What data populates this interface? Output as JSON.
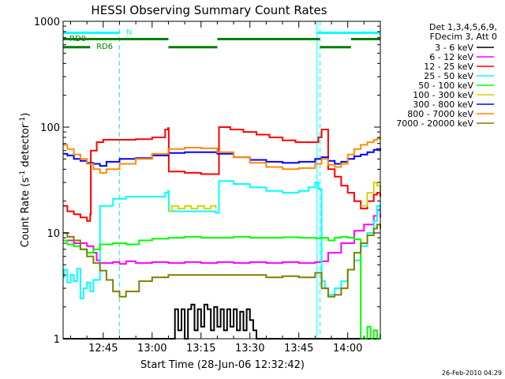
{
  "chart_data": {
    "type": "line",
    "title": "HESSI Observing Summary Count Rates",
    "xlabel": "Start Time (28-Jun-06 12:32:42)",
    "ylabel_main": "Count Rate (s",
    "ylabel_sup1": "-1",
    "ylabel_mid": " detector",
    "ylabel_sup2": "-1",
    "ylabel_end": ")",
    "y_scale": "log",
    "ylim": [
      1,
      1000
    ],
    "xlim": [
      "12:32:42",
      "14:10"
    ],
    "grid": false,
    "legend_position": "top-right",
    "legend_header": [
      "Det 1,3,4,5,6,9,",
      "FDecim 3, Att 0"
    ],
    "x_ticks": [
      {
        "label": "12:45",
        "t": 45
      },
      {
        "label": "13:00",
        "t": 60
      },
      {
        "label": "13:15",
        "t": 75
      },
      {
        "label": "13:30",
        "t": 90
      },
      {
        "label": "13:45",
        "t": 105
      },
      {
        "label": "14:00",
        "t": 120
      }
    ],
    "y_ticks": [
      {
        "label": "1",
        "v": 1
      },
      {
        "label": "10",
        "v": 10
      },
      {
        "label": "100",
        "v": 100
      },
      {
        "label": "1000",
        "v": 1000
      }
    ],
    "flags": [
      {
        "label": "N",
        "color": "#00ffff",
        "v": 780,
        "segments": [
          [
            32.7,
            50.0
          ],
          [
            110.6,
            130.0
          ]
        ]
      },
      {
        "label": "RD0",
        "color": "#007f00",
        "v": 680,
        "segments": [
          [
            32.7,
            43.0
          ],
          [
            41.0,
            65.0
          ],
          [
            80.0,
            111.5
          ],
          [
            121.0,
            130.0
          ]
        ]
      },
      {
        "label": "RD6",
        "color": "#007f00",
        "v": 570,
        "segments": [
          [
            32.7,
            41.0
          ],
          [
            65.0,
            80.0
          ],
          [
            111.5,
            121.0
          ]
        ]
      }
    ],
    "vertical_lines": [
      {
        "t": 50.0,
        "style": "dashed",
        "color": "#00ffff"
      },
      {
        "t": 110.6,
        "style": "solid",
        "color": "#00ffff"
      },
      {
        "t": 111.5,
        "style": "dashed",
        "color": "#00ffff"
      },
      {
        "t": 130.0,
        "style": "dashed",
        "color": "#00ffff"
      }
    ],
    "series": [
      {
        "name": "3 - 6 keV",
        "color": "#000000",
        "x": [
          32.7,
          66,
          67,
          68,
          69,
          70,
          71,
          72,
          73,
          74,
          75,
          76,
          77,
          78,
          79,
          80,
          81,
          82,
          83,
          84,
          85,
          86,
          87,
          88,
          89,
          90,
          91,
          92,
          130
        ],
        "y": [
          1,
          1,
          1.9,
          1.2,
          1.9,
          1,
          1.9,
          2.1,
          1.2,
          1.9,
          1.3,
          2.1,
          1.9,
          1.2,
          2.0,
          1.3,
          1.9,
          1.2,
          1.9,
          1.3,
          1.9,
          1.2,
          1.8,
          1.2,
          1.9,
          1.5,
          1.2,
          1,
          1
        ]
      },
      {
        "name": "6 - 12 keV",
        "color": "#ff00ff",
        "x": [
          32.7,
          36,
          40,
          42,
          43,
          44,
          48,
          50,
          52,
          55,
          60,
          65,
          70,
          75,
          80,
          85,
          90,
          95,
          100,
          105,
          110,
          112,
          114,
          118,
          122,
          125,
          128,
          129,
          130
        ],
        "y": [
          8.5,
          8.0,
          7.5,
          6.5,
          5.5,
          5.2,
          5.3,
          5.1,
          5.4,
          5.2,
          5.3,
          5.2,
          5.3,
          5.2,
          5.3,
          5.2,
          5.3,
          5.2,
          5.3,
          5.2,
          5.3,
          5.4,
          6.5,
          8.0,
          10.5,
          12.0,
          14.5,
          16.5,
          14.0
        ]
      },
      {
        "name": "12 - 25 keV",
        "color": "#ff0000",
        "x": [
          32.7,
          34,
          36,
          38,
          40,
          41,
          41.2,
          43,
          45,
          50,
          55,
          60,
          64,
          64.9,
          65.1,
          70,
          75,
          79.5,
          80.5,
          84,
          88,
          92,
          96,
          100,
          104,
          108,
          111,
          112,
          114,
          116,
          118,
          120,
          122,
          124,
          126,
          128,
          129,
          130
        ],
        "y": [
          18,
          16,
          15,
          14,
          13,
          15,
          60,
          72,
          76,
          76,
          77,
          80,
          95,
          98,
          38,
          37,
          36,
          36,
          100,
          95,
          90,
          85,
          80,
          75,
          72,
          72,
          80,
          95,
          40,
          34,
          28,
          24,
          20,
          17,
          20,
          23,
          24,
          22
        ]
      },
      {
        "name": "25 - 50 keV",
        "color": "#00ffff",
        "x": [
          32.7,
          33,
          34,
          35,
          36,
          37,
          38,
          39,
          40,
          41,
          42,
          44,
          48,
          52,
          56,
          60,
          64,
          64.9,
          65.1,
          70,
          75,
          79.5,
          80.5,
          85,
          90,
          95,
          100,
          105,
          108,
          110,
          111,
          112,
          113,
          114,
          116,
          118,
          120,
          122,
          124,
          126,
          128,
          129,
          130
        ],
        "y": [
          3.8,
          4.5,
          3.4,
          4.0,
          3.5,
          4.6,
          2.4,
          3.0,
          3.4,
          2.8,
          3.6,
          18,
          21,
          22,
          22,
          22,
          24,
          25,
          16,
          16,
          16,
          15.5,
          31,
          29,
          27,
          25,
          24,
          25,
          27,
          30,
          26,
          3.5,
          3.0,
          2.6,
          3.0,
          3.5,
          4.5,
          5.5,
          7.5,
          10,
          13,
          18,
          15
        ]
      },
      {
        "name": "50 - 100 keV",
        "color": "#00ff00",
        "x": [
          32.7,
          34,
          36,
          38,
          40,
          42,
          44,
          48,
          52,
          56,
          60,
          65,
          70,
          75,
          80,
          85,
          90,
          95,
          100,
          105,
          110,
          112,
          114,
          116,
          118,
          120,
          122,
          124,
          125,
          126,
          127,
          128,
          129,
          130
        ],
        "y": [
          8.5,
          7.8,
          7.5,
          7.0,
          6.5,
          7.0,
          7.8,
          8.0,
          7.8,
          8.5,
          8.8,
          9.0,
          9.2,
          9.0,
          9.0,
          9.2,
          9.0,
          9.0,
          9.1,
          9.0,
          8.9,
          9.0,
          8.5,
          9.0,
          9.2,
          9.0,
          8.7,
          1.0,
          1.0,
          1.3,
          1.0,
          1.2,
          1.0,
          1.1
        ]
      },
      {
        "name": "100 - 300 keV",
        "color": "#d4d400",
        "x": [
          32.7,
          64.9,
          65.1,
          66,
          68,
          70,
          72,
          74,
          76,
          78,
          79.5,
          80.5,
          122,
          124,
          126,
          128,
          129,
          130
        ],
        "y": [
          null,
          null,
          16,
          18,
          17,
          18,
          17,
          18,
          17,
          18,
          17,
          null,
          null,
          18,
          24,
          30,
          28,
          24
        ]
      },
      {
        "name": "300 - 800 keV",
        "color": "#0000ff",
        "x": [
          32.7,
          34,
          36,
          38,
          40,
          42,
          44,
          46,
          50,
          55,
          60,
          65,
          70,
          75,
          80,
          85,
          90,
          95,
          100,
          105,
          110,
          112,
          114,
          116,
          118,
          120,
          122,
          124,
          126,
          128,
          129,
          130
        ],
        "y": [
          56,
          54,
          50,
          48,
          46,
          45,
          43,
          47,
          50,
          51,
          54,
          57,
          58,
          58,
          56,
          52,
          49,
          47,
          46,
          47,
          50,
          52,
          48,
          45,
          47,
          50,
          53,
          55,
          58,
          61,
          62,
          60
        ]
      },
      {
        "name": "800 - 7000 keV",
        "color": "#ff8c00",
        "x": [
          32.7,
          34,
          36,
          38,
          40,
          42,
          44,
          46,
          50,
          55,
          60,
          65,
          70,
          75,
          80,
          85,
          90,
          95,
          100,
          105,
          110,
          112,
          114,
          116,
          118,
          120,
          122,
          124,
          126,
          128,
          129,
          130
        ],
        "y": [
          68,
          62,
          55,
          50,
          45,
          40,
          37,
          40,
          45,
          50,
          56,
          62,
          64,
          63,
          58,
          52,
          46,
          42,
          40,
          41,
          45,
          50,
          44,
          42,
          45,
          55,
          62,
          68,
          72,
          76,
          78,
          76
        ]
      },
      {
        "name": "7000 - 20000 keV",
        "color": "#7f7f00",
        "x": [
          32.7,
          34,
          36,
          38,
          40,
          42,
          44,
          46,
          48,
          50,
          52,
          56,
          60,
          65,
          70,
          75,
          80,
          85,
          90,
          95,
          100,
          105,
          110,
          112,
          114,
          116,
          118,
          120,
          122,
          124,
          126,
          128,
          129,
          130
        ],
        "y": [
          10,
          9.2,
          8.5,
          7.0,
          6.0,
          5.2,
          4.4,
          3.6,
          2.8,
          2.5,
          2.8,
          3.5,
          3.8,
          4.0,
          4.0,
          4.0,
          4.0,
          4.0,
          4.0,
          3.8,
          3.9,
          3.8,
          4.2,
          3.0,
          2.5,
          2.6,
          3.0,
          4.5,
          6.5,
          8.0,
          9.5,
          11,
          12,
          11
        ]
      }
    ]
  },
  "stamp": "26-Feb-2010 04:29"
}
